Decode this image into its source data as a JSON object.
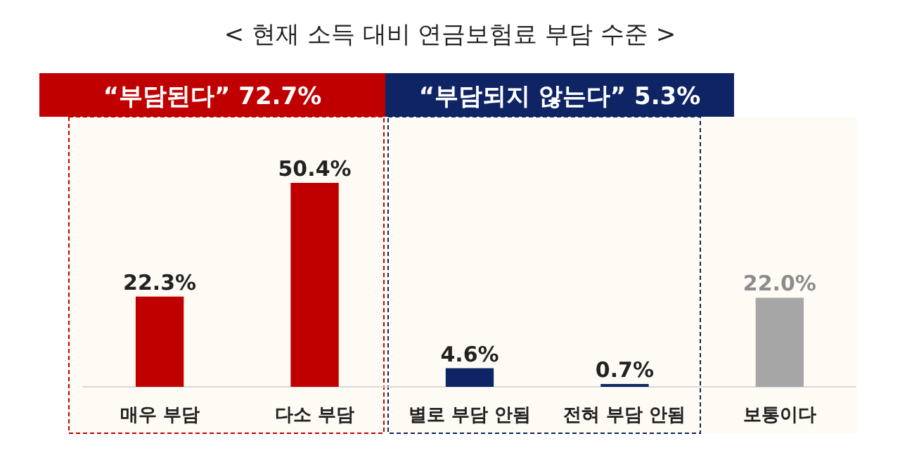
{
  "chart_data": {
    "type": "bar",
    "title": "< 현재 소득 대비 연금보험료 부담 수준 >",
    "categories": [
      "매우 부담",
      "다소 부담",
      "별로 부담 안됨",
      "전혀 부담 안됨",
      "보통이다"
    ],
    "values": [
      22.3,
      50.4,
      4.6,
      0.7,
      22.0
    ],
    "colors": [
      "#c00000",
      "#c00000",
      "#0f2464",
      "#0f2464",
      "#a6a6a6"
    ],
    "value_labels": [
      "22.3%",
      "50.4%",
      "4.6%",
      "0.7%",
      "22.0%"
    ],
    "annotations": [
      "“부담된다” 72.7%",
      "“부담되지 않는다” 5.3%"
    ]
  }
}
